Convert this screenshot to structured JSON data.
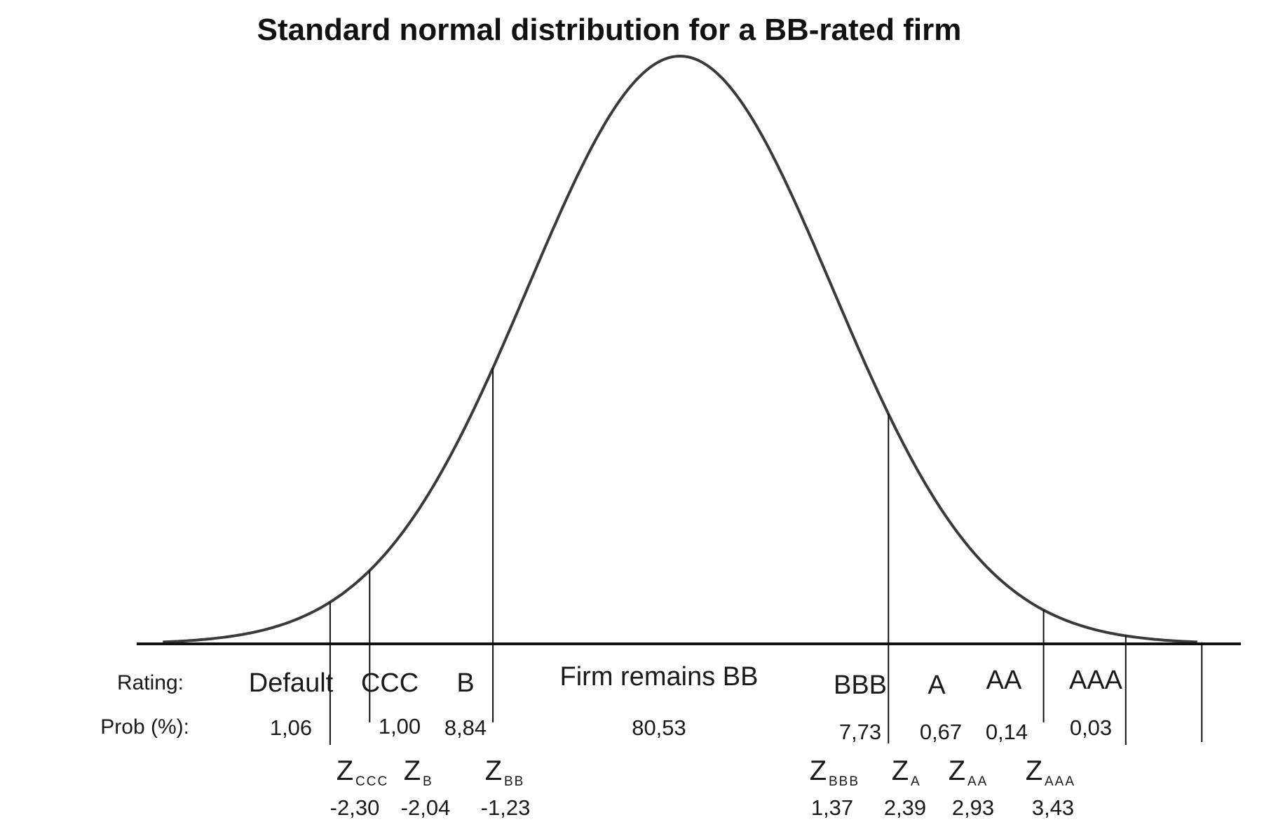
{
  "title": "Standard normal distribution for a BB-rated firm",
  "row_labels": {
    "rating": "Rating:",
    "prob": "Prob (%):"
  },
  "colors": {
    "curve": "#3a3a3a",
    "axis": "#111111",
    "text": "#1a1a1a"
  },
  "regions": [
    {
      "rating": "Default",
      "prob": "1,06"
    },
    {
      "rating": "CCC",
      "prob": "1,00"
    },
    {
      "rating": "B",
      "prob": "8,84"
    },
    {
      "rating": "Firm remains BB",
      "prob": "80,53"
    },
    {
      "rating": "BBB",
      "prob": "7,73"
    },
    {
      "rating": "A",
      "prob": "0,67"
    },
    {
      "rating": "AA",
      "prob": "0,14"
    },
    {
      "rating": "AAA",
      "prob": "0,03"
    }
  ],
  "thresholds": [
    {
      "symbol": "Z",
      "sub": "CCC",
      "value": "-2,30",
      "z": -2.3
    },
    {
      "symbol": "Z",
      "sub": "B",
      "value": "-2,04",
      "z": -2.04
    },
    {
      "symbol": "Z",
      "sub": "BB",
      "value": "-1,23",
      "z": -1.23
    },
    {
      "symbol": "Z",
      "sub": "BBB",
      "value": "1,37",
      "z": 1.37
    },
    {
      "symbol": "Z",
      "sub": "A",
      "value": "2,39",
      "z": 2.39
    },
    {
      "symbol": "Z",
      "sub": "AA",
      "value": "2,93",
      "z": 2.93
    },
    {
      "symbol": "Z",
      "sub": "AAA",
      "value": "3,43",
      "z": 3.43
    }
  ]
}
